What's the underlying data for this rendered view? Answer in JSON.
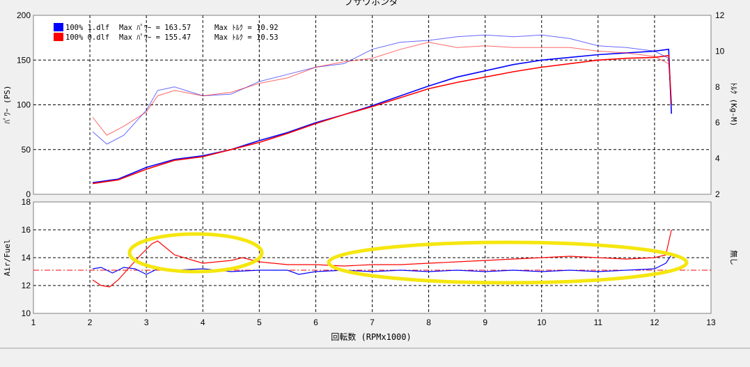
{
  "header": {
    "title": "ブサワホンダ"
  },
  "legend": [
    {
      "color": "#0000ff",
      "file": "100% 1.dlf",
      "power_label": "Max ﾊﾟﾜｰ = 163.57",
      "torque_label": "Max ﾄﾙｸ = 10.92"
    },
    {
      "color": "#ff0000",
      "file": "100% 0.dlf",
      "power_label": "Max ﾊﾟﾜｰ = 155.47",
      "torque_label": "Max ﾄﾙｸ = 10.53"
    }
  ],
  "colors": {
    "run1": "#0000ff",
    "run2": "#ff0000",
    "run1_light": "#6f6ff0",
    "run2_light": "#f07878",
    "highlight": "#f5e60f",
    "plot_bg": "#ffffff",
    "window_bg": "#f0f0f0"
  },
  "chart_data": [
    {
      "type": "line",
      "title": "ブサワホンダ",
      "xlabel": "",
      "ylabel": "ﾊﾟﾜｰ (PS)",
      "y2label": "ﾄﾙｸ (Kg-M)",
      "xlim": [
        1,
        13
      ],
      "ylim": [
        0,
        200
      ],
      "y2lim": [
        2,
        12
      ],
      "y_ticks": [
        "0",
        "50",
        "100",
        "150",
        "200"
      ],
      "y2_ticks": [
        "2",
        "4",
        "6",
        "8",
        "10",
        "12"
      ],
      "grid": true,
      "series": [
        {
          "name": "100% 1.dlf",
          "quantity": "power",
          "axis": "left",
          "color": "#0000ff",
          "x": [
            2.05,
            2.5,
            3.0,
            3.5,
            4.0,
            4.5,
            5.0,
            5.5,
            6.0,
            6.5,
            7.0,
            7.5,
            8.0,
            8.5,
            9.0,
            9.5,
            10.0,
            10.5,
            11.0,
            11.5,
            12.0,
            12.25,
            12.3
          ],
          "y": [
            13,
            17,
            30,
            39,
            43,
            50,
            60,
            69,
            80,
            89,
            99,
            110,
            121,
            131,
            138,
            145,
            150,
            153,
            156,
            158,
            160,
            162,
            90
          ]
        },
        {
          "name": "100% 0.dlf",
          "quantity": "power",
          "axis": "left",
          "color": "#ff0000",
          "x": [
            2.05,
            2.5,
            3.0,
            3.5,
            4.0,
            4.5,
            5.0,
            5.5,
            6.0,
            6.5,
            7.0,
            7.5,
            8.0,
            8.5,
            9.0,
            9.5,
            10.0,
            10.5,
            11.0,
            11.5,
            12.0,
            12.25,
            12.3
          ],
          "y": [
            12,
            16,
            28,
            38,
            42,
            50,
            58,
            68,
            79,
            89,
            98,
            108,
            118,
            125,
            131,
            137,
            142,
            146,
            150,
            152,
            153,
            155,
            100
          ]
        },
        {
          "name": "100% 1.dlf",
          "quantity": "torque",
          "axis": "right",
          "color": "#0000ff",
          "x": [
            2.05,
            2.3,
            2.6,
            3.0,
            3.2,
            3.5,
            4.0,
            4.5,
            5.0,
            5.5,
            6.0,
            6.5,
            7.0,
            7.5,
            8.0,
            8.5,
            9.0,
            9.5,
            10.0,
            10.5,
            11.0,
            11.5,
            12.0,
            12.25,
            12.3
          ],
          "y": [
            5.5,
            4.8,
            5.3,
            6.7,
            7.8,
            8.0,
            7.5,
            7.6,
            8.3,
            8.7,
            9.1,
            9.3,
            10.1,
            10.5,
            10.6,
            10.8,
            10.9,
            10.8,
            10.9,
            10.7,
            10.3,
            10.2,
            10.0,
            9.6,
            6.5
          ]
        },
        {
          "name": "100% 0.dlf",
          "quantity": "torque",
          "axis": "right",
          "color": "#ff0000",
          "x": [
            2.05,
            2.3,
            2.6,
            3.0,
            3.2,
            3.5,
            4.0,
            4.5,
            5.0,
            5.5,
            6.0,
            6.5,
            7.0,
            7.5,
            8.0,
            8.5,
            9.0,
            9.5,
            10.0,
            10.5,
            11.0,
            11.5,
            12.0,
            12.25,
            12.3
          ],
          "y": [
            6.3,
            5.3,
            5.8,
            6.6,
            7.5,
            7.8,
            7.5,
            7.7,
            8.2,
            8.5,
            9.1,
            9.4,
            9.6,
            10.1,
            10.5,
            10.2,
            10.3,
            10.2,
            10.2,
            10.2,
            10.0,
            9.9,
            9.7,
            9.3,
            7.2
          ]
        }
      ]
    },
    {
      "type": "line",
      "title": "",
      "xlabel": "回転数 (RPMx1000)",
      "ylabel": "Air/Fuel",
      "y2label": "無し",
      "xlim": [
        1,
        13
      ],
      "ylim": [
        10,
        18
      ],
      "x_ticks": [
        "1",
        "2",
        "3",
        "4",
        "5",
        "6",
        "7",
        "8",
        "9",
        "10",
        "11",
        "12",
        "13"
      ],
      "y_ticks": [
        "10",
        "12",
        "14",
        "16",
        "18"
      ],
      "grid": true,
      "reference_line": {
        "y": 13.1,
        "style": "dash-dot",
        "color": "#ff0000"
      },
      "series": [
        {
          "name": "100% 1.dlf",
          "quantity": "air_fuel",
          "color": "#0000ff",
          "x": [
            2.05,
            2.2,
            2.4,
            2.6,
            2.8,
            3.0,
            3.2,
            3.5,
            4.0,
            4.5,
            5.0,
            5.5,
            5.7,
            6.0,
            6.5,
            7.0,
            7.5,
            8.0,
            8.5,
            9.0,
            9.5,
            10.0,
            10.5,
            11.0,
            11.5,
            12.0,
            12.2,
            12.3
          ],
          "y": [
            13.2,
            13.3,
            12.9,
            13.3,
            13.2,
            12.8,
            13.2,
            13.1,
            13.2,
            13.0,
            13.1,
            13.1,
            12.8,
            13.0,
            13.1,
            13.0,
            13.1,
            13.0,
            13.1,
            13.0,
            13.1,
            13.0,
            13.1,
            13.0,
            13.1,
            13.2,
            13.6,
            14.2
          ]
        },
        {
          "name": "100% 0.dlf",
          "quantity": "air_fuel",
          "color": "#ff0000",
          "x": [
            2.05,
            2.2,
            2.35,
            2.5,
            2.7,
            2.9,
            3.1,
            3.2,
            3.5,
            4.0,
            4.5,
            4.7,
            5.0,
            5.5,
            6.0,
            6.5,
            7.0,
            7.5,
            8.0,
            8.5,
            9.0,
            9.5,
            10.0,
            10.5,
            11.0,
            11.5,
            12.0,
            12.2,
            12.3
          ],
          "y": [
            12.4,
            12.0,
            11.9,
            12.4,
            13.3,
            14.2,
            15.0,
            15.2,
            14.2,
            13.6,
            13.8,
            14.0,
            13.7,
            13.5,
            13.5,
            13.4,
            13.5,
            13.5,
            13.6,
            13.7,
            13.8,
            13.9,
            14.0,
            14.1,
            14.0,
            13.9,
            14.0,
            14.2,
            16.0
          ]
        }
      ]
    }
  ]
}
